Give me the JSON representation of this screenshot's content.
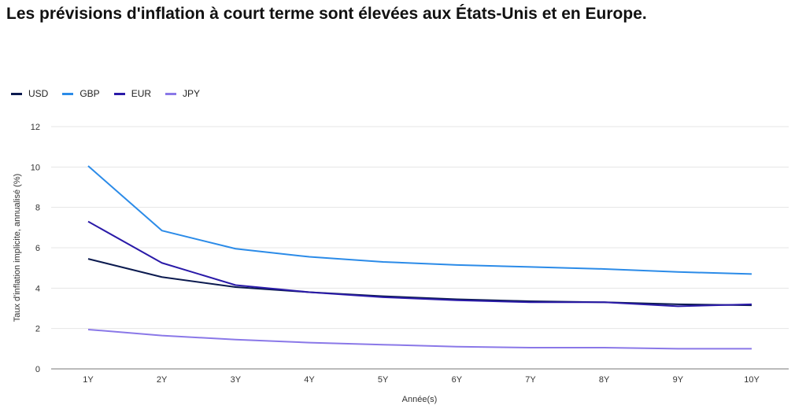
{
  "chart_data": {
    "type": "line",
    "title": "Les prévisions d'inflation à court terme sont élevées aux États-Unis et en Europe.",
    "xlabel": "Année(s)",
    "ylabel": "Taux d'inflation implicite, annualisé (%)",
    "categories": [
      "1Y",
      "2Y",
      "3Y",
      "4Y",
      "5Y",
      "6Y",
      "7Y",
      "8Y",
      "9Y",
      "10Y"
    ],
    "ylim": [
      0,
      12
    ],
    "yticks": [
      0,
      2,
      4,
      6,
      8,
      10,
      12
    ],
    "grid": true,
    "legend_position": "top-left",
    "series": [
      {
        "name": "USD",
        "color": "#0b1a4f",
        "values": [
          5.45,
          4.55,
          4.05,
          3.8,
          3.6,
          3.45,
          3.35,
          3.3,
          3.2,
          3.15
        ]
      },
      {
        "name": "GBP",
        "color": "#2b8be8",
        "values": [
          10.05,
          6.85,
          5.95,
          5.55,
          5.3,
          5.15,
          5.05,
          4.95,
          4.8,
          4.7
        ]
      },
      {
        "name": "EUR",
        "color": "#2a1aa8",
        "values": [
          7.3,
          5.25,
          4.15,
          3.8,
          3.55,
          3.4,
          3.3,
          3.3,
          3.1,
          3.2
        ]
      },
      {
        "name": "JPY",
        "color": "#8a78e8",
        "values": [
          1.95,
          1.65,
          1.45,
          1.3,
          1.2,
          1.1,
          1.05,
          1.05,
          1.0,
          1.0
        ]
      }
    ]
  }
}
